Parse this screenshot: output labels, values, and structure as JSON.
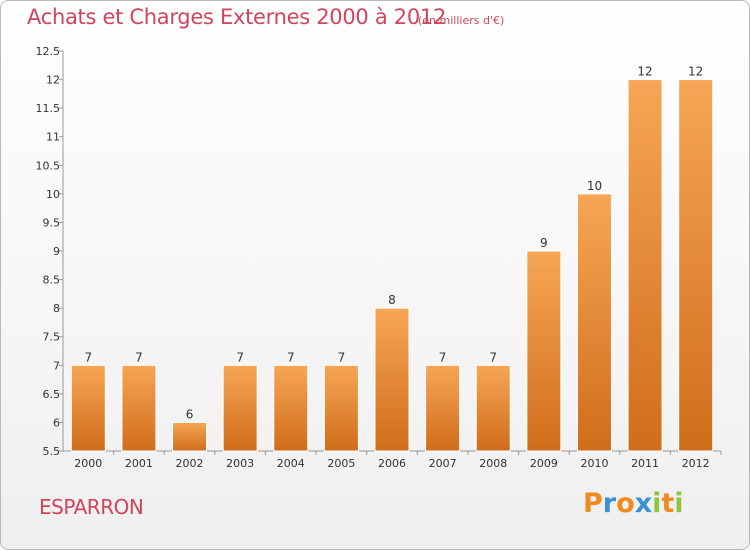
{
  "header": {
    "title": "Achats et Charges Externes 2000 à 2012",
    "subtitle": "(en milliers d'€)"
  },
  "footer": {
    "commune": "ESPARRON",
    "logo_letters": [
      {
        "ch": "P",
        "color": "#f08a1c"
      },
      {
        "ch": "r",
        "color": "#3a8fd6"
      },
      {
        "ch": "o",
        "color": "#f08a1c"
      },
      {
        "ch": "x",
        "color": "#3a8fd6"
      },
      {
        "ch": "i",
        "color": "#8cc63f"
      },
      {
        "ch": "t",
        "color": "#f08a1c"
      },
      {
        "ch": "i",
        "color": "#8cc63f"
      }
    ]
  },
  "colors": {
    "bar_top": "#f6a656",
    "bar_bottom": "#d06d1a",
    "accent": "#d0455b"
  },
  "chart_data": {
    "type": "bar",
    "categories": [
      "2000",
      "2001",
      "2002",
      "2003",
      "2004",
      "2005",
      "2006",
      "2007",
      "2008",
      "2009",
      "2010",
      "2011",
      "2012"
    ],
    "values": [
      7,
      7,
      6,
      7,
      7,
      7,
      8,
      7,
      7,
      9,
      10,
      12,
      12
    ],
    "value_labels": [
      "7",
      "7",
      "6",
      "7",
      "7",
      "7",
      "8",
      "7",
      "7",
      "9",
      "10",
      "12",
      "12"
    ],
    "ylim": [
      5.5,
      12.5
    ],
    "yticks": [
      5.5,
      6,
      6.5,
      7,
      7.5,
      8,
      8.5,
      9,
      9.5,
      10,
      10.5,
      11,
      11.5,
      12,
      12.5
    ],
    "ytick_labels": [
      "5.5",
      "6",
      "6.5",
      "7",
      "7.5",
      "8",
      "8.5",
      "9",
      "9.5",
      "10",
      "10.5",
      "11",
      "11.5",
      "12",
      "12.5"
    ],
    "grid": false,
    "title": "Achats et Charges Externes 2000 à 2012"
  }
}
